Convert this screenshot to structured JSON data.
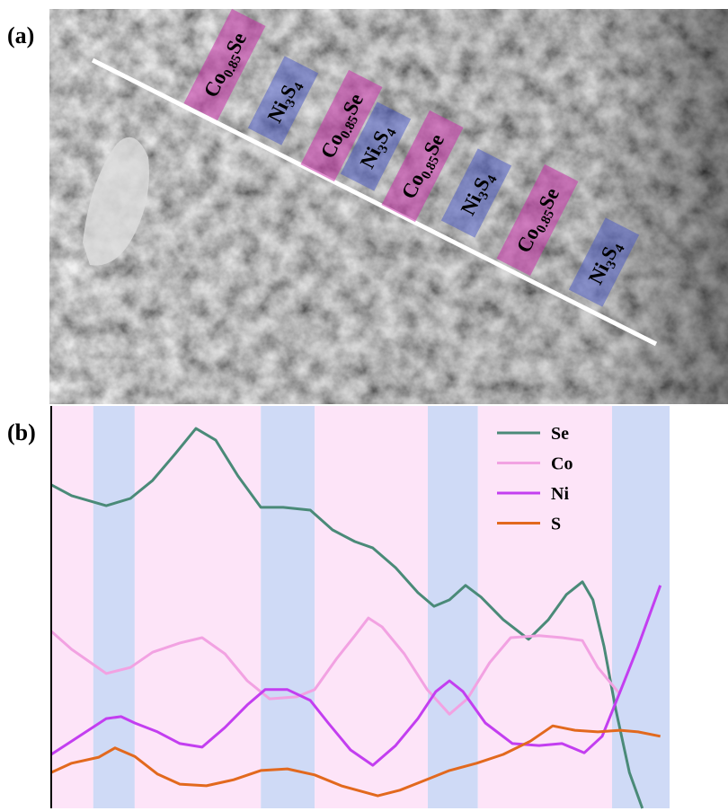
{
  "panel_a": {
    "label": "(a)",
    "regions": [
      {
        "kind": "co",
        "parts": [
          "Co",
          "0.85",
          "Se"
        ]
      },
      {
        "kind": "ni",
        "parts": [
          "Ni",
          "3",
          "S",
          "4"
        ]
      },
      {
        "kind": "co",
        "parts": [
          "Co",
          "0.85",
          "Se"
        ]
      },
      {
        "kind": "ni",
        "parts": [
          "Ni",
          "3",
          "S",
          "4"
        ]
      },
      {
        "kind": "co",
        "parts": [
          "Co",
          "0.85",
          "Se"
        ]
      },
      {
        "kind": "ni",
        "parts": [
          "Ni",
          "3",
          "S",
          "4"
        ]
      },
      {
        "kind": "co",
        "parts": [
          "Co",
          "0.85",
          "Se"
        ]
      },
      {
        "kind": "ni",
        "parts": [
          "Ni",
          "3",
          "S",
          "4"
        ]
      }
    ]
  },
  "chart_data": {
    "type": "line",
    "label": "(b)",
    "xlim": [
      0,
      100
    ],
    "ylim": [
      0,
      100
    ],
    "legend": "upper right",
    "bands": [
      {
        "start": 0,
        "end": 6.8,
        "color": "#fde4f8"
      },
      {
        "start": 6.8,
        "end": 13.5,
        "color": "#cfdaf6"
      },
      {
        "start": 13.5,
        "end": 33.9,
        "color": "#fde4f8"
      },
      {
        "start": 33.9,
        "end": 42.6,
        "color": "#cfdaf6"
      },
      {
        "start": 42.6,
        "end": 60.9,
        "color": "#fde4f8"
      },
      {
        "start": 60.9,
        "end": 69.0,
        "color": "#cfdaf6"
      },
      {
        "start": 69.0,
        "end": 90.7,
        "color": "#fde4f8"
      },
      {
        "start": 90.7,
        "end": 100,
        "color": "#cfdaf6"
      }
    ],
    "series": [
      {
        "name": "Se",
        "color": "#4a8a78",
        "x": [
          0,
          3.3,
          8.9,
          12.8,
          16.4,
          20.1,
          23.4,
          26.6,
          30.2,
          33.9,
          37.5,
          41.9,
          45.5,
          49.1,
          52.0,
          55.7,
          59.3,
          61.9,
          64.4,
          67.0,
          69.5,
          73.1,
          77.2,
          80.4,
          83.3,
          85.9,
          87.6,
          89.4,
          91.3,
          93.5,
          95.6
        ],
        "values": [
          80.4,
          77.7,
          75.2,
          77.0,
          81.5,
          88.2,
          94.4,
          91.5,
          82.6,
          74.8,
          74.8,
          74.1,
          69.2,
          66.3,
          64.7,
          59.8,
          53.6,
          50.2,
          51.8,
          55.4,
          52.5,
          46.9,
          42.0,
          46.9,
          53.1,
          56.3,
          51.8,
          40.2,
          24.6,
          8.9,
          0
        ]
      },
      {
        "name": "Co",
        "color": "#f2a2e2",
        "x": [
          0,
          3.3,
          8.9,
          12.8,
          16.4,
          20.8,
          24.4,
          28.1,
          31.7,
          35.3,
          39.7,
          42.6,
          46.2,
          49.1,
          51.3,
          53.5,
          57.1,
          60.8,
          64.4,
          67.3,
          70.9,
          74.3,
          78.9,
          82.6,
          85.9,
          88.4,
          92.0
        ],
        "values": [
          44.0,
          39.5,
          33.5,
          35.0,
          38.8,
          41.1,
          42.4,
          38.4,
          31.7,
          27.2,
          27.7,
          29.5,
          37.3,
          42.9,
          47.3,
          45.1,
          38.4,
          29.5,
          23.4,
          27.2,
          36.2,
          42.4,
          42.9,
          42.4,
          41.7,
          35.0,
          28.3
        ]
      },
      {
        "name": "Ni",
        "color": "#c33ef0",
        "x": [
          0,
          3.3,
          8.9,
          11.3,
          13.5,
          17.2,
          20.8,
          24.4,
          28.1,
          31.7,
          34.6,
          38.2,
          41.9,
          44.8,
          48.4,
          52.0,
          55.7,
          59.3,
          62.2,
          64.4,
          66.6,
          70.2,
          74.6,
          78.9,
          82.6,
          86.2,
          89.1,
          92.0,
          94.9,
          98.5
        ],
        "values": [
          13.4,
          16.7,
          22.3,
          22.8,
          21.2,
          19.0,
          16.1,
          15.2,
          20.1,
          25.7,
          29.5,
          29.5,
          26.8,
          21.2,
          14.5,
          10.7,
          15.6,
          22.3,
          29.0,
          31.7,
          29.0,
          21.2,
          16.1,
          15.6,
          16.1,
          13.8,
          17.9,
          29.0,
          40.2,
          55.4
        ]
      },
      {
        "name": "S",
        "color": "#e2691e",
        "x": [
          0,
          3.3,
          7.7,
          10.3,
          13.5,
          17.2,
          20.8,
          25.1,
          29.5,
          33.9,
          38.2,
          42.6,
          46.9,
          52.8,
          56.4,
          60.0,
          64.4,
          68.8,
          73.1,
          77.5,
          81.1,
          84.7,
          88.4,
          92.0,
          94.9,
          98.5
        ],
        "values": [
          8.9,
          11.2,
          12.7,
          15.0,
          12.9,
          8.5,
          6.0,
          5.6,
          7.1,
          9.4,
          9.8,
          8.3,
          5.6,
          3.1,
          4.5,
          6.7,
          9.4,
          11.2,
          13.4,
          16.7,
          20.5,
          19.4,
          19.0,
          19.4,
          19.0,
          17.9
        ]
      }
    ]
  }
}
